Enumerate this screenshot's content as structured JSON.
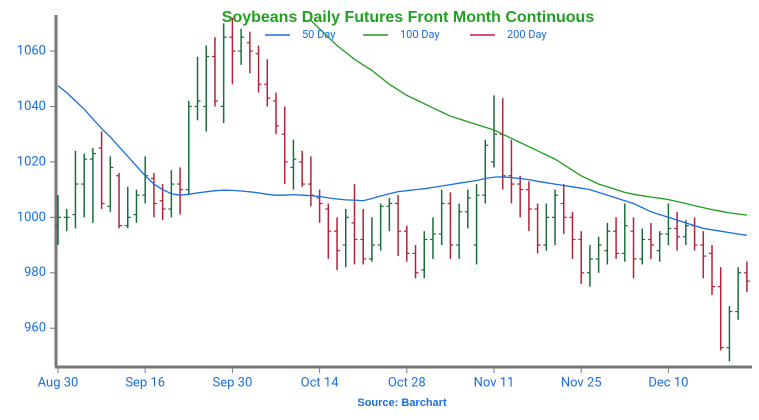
{
  "chart_data": {
    "type": "ohlc",
    "title": "Soybeans Daily Futures Front Month Continuous",
    "source": "Source: Barchart",
    "up_color": "#1b6e3c",
    "down_color": "#b5233b",
    "ylim": [
      946,
      1073
    ],
    "yticks": [
      960,
      980,
      1000,
      1020,
      1040,
      1060
    ],
    "categories": [
      "Aug 30",
      null,
      null,
      null,
      null,
      null,
      null,
      null,
      null,
      null,
      "Sep 16",
      null,
      null,
      null,
      null,
      null,
      null,
      null,
      null,
      null,
      "Sep 30",
      null,
      null,
      null,
      null,
      null,
      null,
      null,
      null,
      null,
      "Oct 14",
      null,
      null,
      null,
      null,
      null,
      null,
      null,
      null,
      null,
      "Oct 28",
      null,
      null,
      null,
      null,
      null,
      null,
      null,
      null,
      null,
      "Nov 11",
      null,
      null,
      null,
      null,
      null,
      null,
      null,
      null,
      null,
      "Nov 25",
      null,
      null,
      null,
      null,
      null,
      null,
      null,
      null,
      null,
      "Dec 10",
      null,
      null,
      null,
      null,
      null,
      null,
      null,
      null,
      null
    ],
    "ohlc": [
      [
        997,
        1008,
        990,
        1000
      ],
      [
        1000,
        1003,
        995,
        1000
      ],
      [
        1001,
        1024,
        996,
        1012
      ],
      [
        1012,
        1023,
        1000,
        1021
      ],
      [
        1021,
        1025,
        998,
        1023
      ],
      [
        1025,
        1031,
        1003,
        1005
      ],
      [
        1004,
        1022,
        1002,
        1018
      ],
      [
        1015,
        1016,
        996,
        997
      ],
      [
        997,
        1011,
        996,
        1000
      ],
      [
        1001,
        1010,
        998,
        1008
      ],
      [
        1008,
        1022,
        1005,
        1015
      ],
      [
        1014,
        1016,
        1000,
        1005
      ],
      [
        1006,
        1012,
        999,
        1003
      ],
      [
        1003,
        1017,
        1000,
        1012
      ],
      [
        1012,
        1018,
        1001,
        1010
      ],
      [
        1010,
        1042,
        1008,
        1040
      ],
      [
        1040,
        1058,
        1035,
        1042
      ],
      [
        1040,
        1062,
        1031,
        1058
      ],
      [
        1058,
        1065,
        1040,
        1042
      ],
      [
        1040,
        1070,
        1034,
        1065
      ],
      [
        1065,
        1072,
        1048,
        1060
      ],
      [
        1060,
        1068,
        1055,
        1065
      ],
      [
        1063,
        1067,
        1052,
        1060
      ],
      [
        1059,
        1062,
        1045,
        1048
      ],
      [
        1048,
        1057,
        1040,
        1043
      ],
      [
        1042,
        1045,
        1030,
        1033
      ],
      [
        1030,
        1040,
        1012,
        1020
      ],
      [
        1018,
        1028,
        1010,
        1021
      ],
      [
        1020,
        1024,
        1011,
        1012
      ],
      [
        1012,
        1022,
        1004,
        1008
      ],
      [
        1007,
        1010,
        998,
        1005
      ],
      [
        1003,
        1005,
        985,
        995
      ],
      [
        995,
        1000,
        981,
        988
      ],
      [
        990,
        1003,
        982,
        1000
      ],
      [
        998,
        1012,
        983,
        992
      ],
      [
        992,
        1003,
        983,
        985
      ],
      [
        985,
        1000,
        984,
        990
      ],
      [
        990,
        1005,
        988,
        1004
      ],
      [
        1004,
        1007,
        995,
        1005
      ],
      [
        1005,
        1008,
        986,
        995
      ],
      [
        995,
        997,
        984,
        987
      ],
      [
        987,
        990,
        978,
        980
      ],
      [
        981,
        995,
        978,
        992
      ],
      [
        992,
        1000,
        985,
        994
      ],
      [
        994,
        1010,
        990,
        1005
      ],
      [
        1005,
        1009,
        985,
        990
      ],
      [
        990,
        1005,
        985,
        1002
      ],
      [
        1002,
        1010,
        996,
        1007
      ],
      [
        990,
        1012,
        983,
        1008
      ],
      [
        1008,
        1028,
        1005,
        1026
      ],
      [
        1020,
        1044,
        1018,
        1030
      ],
      [
        1030,
        1043,
        1010,
        1015
      ],
      [
        1015,
        1028,
        1005,
        1012
      ],
      [
        1012,
        1015,
        1000,
        1010
      ],
      [
        1010,
        1013,
        995,
        1003
      ],
      [
        1003,
        1005,
        987,
        990
      ],
      [
        990,
        1005,
        988,
        1000
      ],
      [
        1000,
        1010,
        990,
        1008
      ],
      [
        1005,
        1012,
        994,
        1000
      ],
      [
        1000,
        1002,
        985,
        992
      ],
      [
        992,
        995,
        976,
        980
      ],
      [
        980,
        990,
        975,
        985
      ],
      [
        985,
        993,
        980,
        990
      ],
      [
        988,
        998,
        983,
        995
      ],
      [
        995,
        1000,
        985,
        987
      ],
      [
        987,
        1005,
        984,
        997
      ],
      [
        995,
        1000,
        978,
        985
      ],
      [
        985,
        996,
        983,
        992
      ],
      [
        992,
        998,
        985,
        990
      ],
      [
        988,
        995,
        984,
        994
      ],
      [
        994,
        1005,
        990,
        996
      ],
      [
        996,
        1002,
        988,
        993
      ],
      [
        993,
        999,
        990,
        997
      ],
      [
        997,
        1000,
        988,
        990
      ],
      [
        990,
        995,
        978,
        986
      ],
      [
        987,
        990,
        972,
        975
      ],
      [
        975,
        982,
        952,
        953
      ],
      [
        953,
        968,
        948,
        966
      ],
      [
        966,
        982,
        963,
        980
      ],
      [
        980,
        984,
        973,
        977
      ]
    ],
    "series": [
      {
        "name": "50 Day",
        "color": "#1a6fe0",
        "values": [
          1047.5,
          1045,
          1042,
          1039,
          1035.5,
          1032,
          1029,
          1025.5,
          1022,
          1018.5,
          1015,
          1012,
          1010,
          1008.5,
          1008,
          1008.3,
          1008.8,
          1009.2,
          1009.6,
          1009.8,
          1009.7,
          1009.5,
          1009.2,
          1008.8,
          1008.3,
          1008,
          1008,
          1008.2,
          1008,
          1007.8,
          1007.5,
          1007,
          1006.6,
          1006.3,
          1006.2,
          1006,
          1006.8,
          1007.7,
          1008.5,
          1009.3,
          1009.6,
          1010,
          1010.3,
          1010.8,
          1011.3,
          1011.8,
          1012.3,
          1012.8,
          1013.3,
          1014,
          1014.5,
          1014.6,
          1014.3,
          1014,
          1013.6,
          1013,
          1012.5,
          1012,
          1011.5,
          1011,
          1010.5,
          1010,
          1009,
          1008,
          1007,
          1006,
          1005,
          1003.5,
          1002,
          1001,
          1000,
          999,
          998,
          997,
          996,
          995.5,
          995,
          994.5,
          994,
          993.5
        ]
      },
      {
        "name": "100 Day",
        "color": "#1f9e1f",
        "values": [
          null,
          null,
          null,
          null,
          null,
          null,
          null,
          null,
          null,
          null,
          null,
          null,
          null,
          null,
          null,
          null,
          null,
          null,
          null,
          null,
          null,
          null,
          null,
          null,
          null,
          null,
          null,
          null,
          null,
          1071,
          1068,
          1065,
          1062,
          1059.5,
          1057,
          1055,
          1053,
          1050.5,
          1048,
          1046,
          1044,
          1042.5,
          1041,
          1039.5,
          1038,
          1036.5,
          1035.5,
          1034.5,
          1033.5,
          1032.5,
          1031.5,
          1030,
          1028.5,
          1027,
          1025.5,
          1024,
          1022.5,
          1021,
          1019,
          1017,
          1015,
          1013.5,
          1012,
          1011,
          1010,
          1009,
          1008.3,
          1007.8,
          1007.3,
          1006.9,
          1006.4,
          1005.7,
          1005,
          1004.2,
          1003.5,
          1002.8,
          1002.2,
          1001.6,
          1001.2,
          1000.8
        ]
      },
      {
        "name": "200 Day",
        "color": "#c0183a"
      }
    ]
  }
}
